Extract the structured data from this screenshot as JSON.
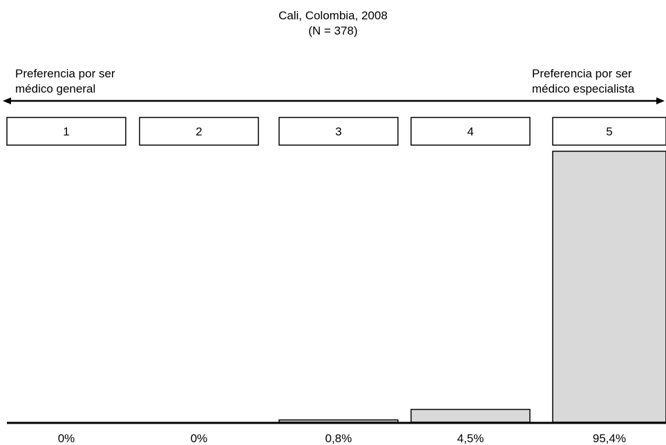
{
  "chart_data": {
    "type": "bar",
    "title": "Cali, Colombia, 2008",
    "subtitle": "(N = 378)",
    "scale_left_label": "Preferencia por ser\nmédico general",
    "scale_right_label": "Preferencia por ser\nmédico especialista",
    "categories": [
      "1",
      "2",
      "3",
      "4",
      "5"
    ],
    "values": [
      0,
      0,
      0.8,
      4.5,
      95.4
    ],
    "value_labels": [
      "0%",
      "0%",
      "0,8%",
      "4,5%",
      "95,4%"
    ],
    "unit": "%",
    "ylim": [
      0,
      100
    ],
    "bar_color": "#d9d9d9",
    "grid": false
  }
}
